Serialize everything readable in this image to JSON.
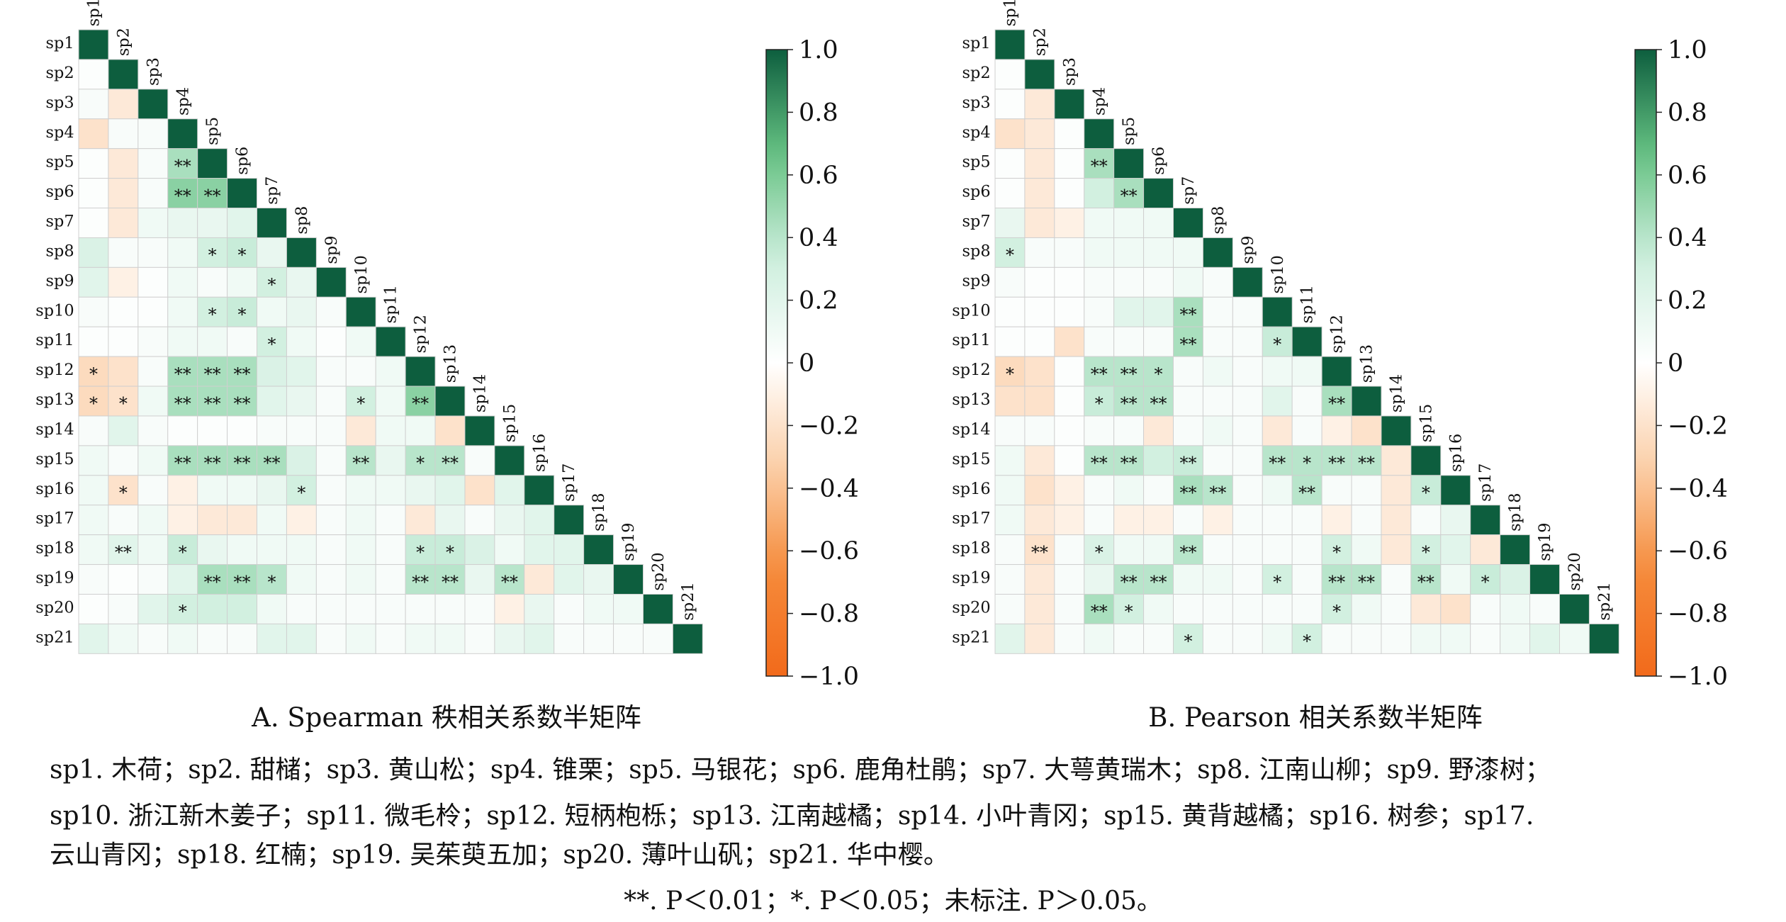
{
  "panels": [
    {
      "caption": "A. Spearman 秩相关系数半矩阵",
      "chart_data": {
        "type": "heatmap",
        "labels": [
          "sp1",
          "sp2",
          "sp3",
          "sp4",
          "sp5",
          "sp6",
          "sp7",
          "sp8",
          "sp9",
          "sp10",
          "sp11",
          "sp12",
          "sp13",
          "sp14",
          "sp15",
          "sp16",
          "sp17",
          "sp18",
          "sp19",
          "sp20",
          "sp21"
        ],
        "matrix": [
          [
            1.0
          ],
          [
            0.02,
            1.0
          ],
          [
            0.05,
            -0.15,
            1.0
          ],
          [
            -0.2,
            0.05,
            0.05,
            1.0
          ],
          [
            0.02,
            -0.15,
            0.05,
            0.45,
            1.0
          ],
          [
            0.02,
            -0.15,
            0.05,
            0.55,
            0.55,
            1.0
          ],
          [
            0.02,
            -0.15,
            0.1,
            0.15,
            0.15,
            0.2,
            1.0
          ],
          [
            0.25,
            0.05,
            0.05,
            0.1,
            0.3,
            0.35,
            0.15,
            1.0
          ],
          [
            0.2,
            -0.1,
            0.02,
            0.1,
            0.05,
            0.1,
            0.3,
            0.15,
            1.0
          ],
          [
            0.05,
            0.02,
            0.02,
            0.1,
            0.3,
            0.35,
            0.1,
            0.15,
            0.05,
            1.0
          ],
          [
            0.02,
            0.02,
            0.05,
            0.1,
            0.1,
            0.05,
            0.3,
            0.1,
            0.02,
            0.1,
            1.0
          ],
          [
            -0.25,
            -0.2,
            0.05,
            0.45,
            0.45,
            0.45,
            0.25,
            0.2,
            0.05,
            0.05,
            0.1,
            1.0
          ],
          [
            -0.25,
            -0.2,
            0.1,
            0.45,
            0.45,
            0.45,
            0.2,
            0.15,
            0.05,
            0.3,
            0.1,
            0.55,
            1.0
          ],
          [
            0.05,
            0.2,
            0.05,
            0.02,
            0.02,
            0.02,
            0.05,
            0.05,
            0.05,
            -0.15,
            0.1,
            0.1,
            -0.2,
            1.0
          ],
          [
            0.1,
            0.05,
            0.1,
            0.45,
            0.45,
            0.45,
            0.45,
            0.25,
            0.05,
            0.4,
            0.15,
            0.4,
            0.4,
            0.05,
            1.0
          ],
          [
            0.1,
            -0.2,
            0.05,
            -0.1,
            0.1,
            0.1,
            0.15,
            0.3,
            0.05,
            0.1,
            0.1,
            0.15,
            0.2,
            -0.2,
            0.2,
            1.0
          ],
          [
            0.1,
            0.05,
            0.1,
            -0.1,
            -0.15,
            -0.15,
            0.1,
            -0.1,
            0.05,
            0.1,
            0.05,
            -0.15,
            0.15,
            0.05,
            0.15,
            0.2,
            1.0
          ],
          [
            0.1,
            0.2,
            0.1,
            0.35,
            0.15,
            0.1,
            0.1,
            0.1,
            0.05,
            0.1,
            0.05,
            0.35,
            0.35,
            0.25,
            0.1,
            0.2,
            0.2,
            1.0
          ],
          [
            0.05,
            0.02,
            0.05,
            0.2,
            0.45,
            0.45,
            0.4,
            0.1,
            0.05,
            0.1,
            0.05,
            0.4,
            0.4,
            0.15,
            0.4,
            -0.15,
            0.2,
            0.15,
            1.0
          ],
          [
            0.02,
            0.05,
            0.2,
            0.3,
            0.3,
            0.3,
            0.1,
            0.05,
            0.05,
            0.05,
            0.05,
            0.05,
            0.05,
            0.05,
            -0.1,
            0.15,
            0.05,
            0.1,
            0.1,
            1.0
          ],
          [
            0.2,
            0.1,
            0.05,
            0.1,
            0.05,
            0.05,
            0.2,
            0.2,
            0.05,
            0.1,
            0.05,
            0.1,
            0.1,
            0.05,
            0.15,
            0.2,
            0.05,
            0.05,
            0.05,
            0.05,
            1.0
          ]
        ],
        "significance": [
          {
            "row": 5,
            "col": 4,
            "mark": "**"
          },
          {
            "row": 6,
            "col": 4,
            "mark": "**"
          },
          {
            "row": 6,
            "col": 5,
            "mark": "**"
          },
          {
            "row": 8,
            "col": 5,
            "mark": "*"
          },
          {
            "row": 8,
            "col": 6,
            "mark": "*"
          },
          {
            "row": 9,
            "col": 7,
            "mark": "*"
          },
          {
            "row": 10,
            "col": 5,
            "mark": "*"
          },
          {
            "row": 10,
            "col": 6,
            "mark": "*"
          },
          {
            "row": 11,
            "col": 7,
            "mark": "*"
          },
          {
            "row": 12,
            "col": 1,
            "mark": "*"
          },
          {
            "row": 12,
            "col": 4,
            "mark": "**"
          },
          {
            "row": 12,
            "col": 5,
            "mark": "**"
          },
          {
            "row": 12,
            "col": 6,
            "mark": "**"
          },
          {
            "row": 13,
            "col": 1,
            "mark": "*"
          },
          {
            "row": 13,
            "col": 2,
            "mark": "*"
          },
          {
            "row": 13,
            "col": 4,
            "mark": "**"
          },
          {
            "row": 13,
            "col": 5,
            "mark": "**"
          },
          {
            "row": 13,
            "col": 6,
            "mark": "**"
          },
          {
            "row": 13,
            "col": 10,
            "mark": "*"
          },
          {
            "row": 13,
            "col": 12,
            "mark": "**"
          },
          {
            "row": 15,
            "col": 4,
            "mark": "**"
          },
          {
            "row": 15,
            "col": 5,
            "mark": "**"
          },
          {
            "row": 15,
            "col": 6,
            "mark": "**"
          },
          {
            "row": 15,
            "col": 7,
            "mark": "**"
          },
          {
            "row": 15,
            "col": 10,
            "mark": "**"
          },
          {
            "row": 15,
            "col": 12,
            "mark": "*"
          },
          {
            "row": 15,
            "col": 13,
            "mark": "**"
          },
          {
            "row": 16,
            "col": 2,
            "mark": "*"
          },
          {
            "row": 16,
            "col": 8,
            "mark": "*"
          },
          {
            "row": 18,
            "col": 2,
            "mark": "**"
          },
          {
            "row": 18,
            "col": 4,
            "mark": "*"
          },
          {
            "row": 18,
            "col": 12,
            "mark": "*"
          },
          {
            "row": 18,
            "col": 13,
            "mark": "*"
          },
          {
            "row": 19,
            "col": 5,
            "mark": "**"
          },
          {
            "row": 19,
            "col": 6,
            "mark": "**"
          },
          {
            "row": 19,
            "col": 7,
            "mark": "*"
          },
          {
            "row": 19,
            "col": 12,
            "mark": "**"
          },
          {
            "row": 19,
            "col": 13,
            "mark": "**"
          },
          {
            "row": 19,
            "col": 15,
            "mark": "**"
          },
          {
            "row": 20,
            "col": 4,
            "mark": "*"
          }
        ]
      }
    },
    {
      "caption": "B. Pearson 相关系数半矩阵",
      "chart_data": {
        "type": "heatmap",
        "labels": [
          "sp1",
          "sp2",
          "sp3",
          "sp4",
          "sp5",
          "sp6",
          "sp7",
          "sp8",
          "sp9",
          "sp10",
          "sp11",
          "sp12",
          "sp13",
          "sp14",
          "sp15",
          "sp16",
          "sp17",
          "sp18",
          "sp19",
          "sp20",
          "sp21"
        ],
        "matrix": [
          [
            1.0
          ],
          [
            0.02,
            1.0
          ],
          [
            0.02,
            -0.15,
            1.0
          ],
          [
            -0.2,
            -0.15,
            0.02,
            1.0
          ],
          [
            0.02,
            -0.15,
            0.02,
            0.45,
            1.0
          ],
          [
            0.02,
            -0.15,
            0.02,
            0.3,
            0.45,
            1.0
          ],
          [
            0.15,
            -0.15,
            -0.1,
            0.1,
            0.1,
            0.1,
            1.0
          ],
          [
            0.3,
            0.05,
            0.05,
            0.1,
            0.1,
            0.1,
            0.1,
            1.0
          ],
          [
            0.05,
            0.02,
            0.02,
            0.05,
            0.05,
            0.05,
            0.1,
            0.05,
            1.0
          ],
          [
            0.02,
            0.02,
            0.02,
            0.05,
            0.2,
            0.2,
            0.45,
            0.05,
            0.05,
            1.0
          ],
          [
            0.02,
            0.02,
            -0.2,
            0.05,
            0.05,
            0.05,
            0.45,
            0.05,
            0.05,
            0.35,
            1.0
          ],
          [
            -0.25,
            -0.2,
            0.02,
            0.4,
            0.4,
            0.4,
            0.05,
            0.1,
            0.05,
            0.1,
            0.1,
            1.0
          ],
          [
            -0.2,
            -0.2,
            0.02,
            0.35,
            0.4,
            0.4,
            0.05,
            0.05,
            0.05,
            0.2,
            0.05,
            0.45,
            1.0
          ],
          [
            0.05,
            0.05,
            0.02,
            0.05,
            0.05,
            -0.15,
            0.05,
            0.1,
            0.05,
            -0.15,
            0.05,
            -0.1,
            -0.2,
            1.0
          ],
          [
            0.1,
            -0.15,
            0.02,
            0.4,
            0.4,
            0.3,
            0.35,
            0.05,
            0.05,
            0.4,
            0.4,
            0.4,
            0.4,
            -0.15,
            1.0
          ],
          [
            0.1,
            -0.2,
            -0.1,
            0.05,
            0.1,
            0.05,
            0.45,
            0.4,
            0.05,
            0.1,
            0.4,
            0.05,
            0.05,
            -0.15,
            0.35,
            1.0
          ],
          [
            0.1,
            -0.15,
            -0.1,
            0.05,
            -0.1,
            -0.1,
            0.05,
            -0.1,
            0.05,
            0.05,
            0.05,
            -0.1,
            0.05,
            -0.15,
            0.05,
            0.15,
            1.0
          ],
          [
            0.05,
            -0.2,
            0.05,
            0.25,
            0.1,
            0.1,
            0.4,
            0.05,
            0.05,
            0.05,
            0.05,
            0.3,
            0.1,
            -0.15,
            0.3,
            0.2,
            -0.15,
            1.0
          ],
          [
            0.05,
            -0.15,
            0.05,
            0.15,
            0.4,
            0.4,
            0.1,
            0.1,
            0.05,
            0.3,
            0.05,
            0.4,
            0.4,
            0.05,
            0.4,
            0.1,
            0.35,
            0.25,
            1.0
          ],
          [
            0.05,
            -0.15,
            0.05,
            0.45,
            0.3,
            0.1,
            0.05,
            0.05,
            0.05,
            0.05,
            0.05,
            0.3,
            0.1,
            0.05,
            -0.15,
            -0.2,
            0.05,
            0.1,
            0.05,
            1.0
          ],
          [
            0.2,
            -0.15,
            0.05,
            0.1,
            0.05,
            0.05,
            0.3,
            0.05,
            0.05,
            0.1,
            0.3,
            0.05,
            0.05,
            0.05,
            0.1,
            0.1,
            0.05,
            0.1,
            0.2,
            0.1,
            1.0
          ]
        ],
        "significance": [
          {
            "row": 5,
            "col": 4,
            "mark": "**"
          },
          {
            "row": 6,
            "col": 5,
            "mark": "**"
          },
          {
            "row": 8,
            "col": 1,
            "mark": "*"
          },
          {
            "row": 10,
            "col": 7,
            "mark": "**"
          },
          {
            "row": 11,
            "col": 7,
            "mark": "**"
          },
          {
            "row": 11,
            "col": 10,
            "mark": "*"
          },
          {
            "row": 12,
            "col": 1,
            "mark": "*"
          },
          {
            "row": 12,
            "col": 4,
            "mark": "**"
          },
          {
            "row": 12,
            "col": 5,
            "mark": "**"
          },
          {
            "row": 12,
            "col": 6,
            "mark": "*"
          },
          {
            "row": 13,
            "col": 4,
            "mark": "*"
          },
          {
            "row": 13,
            "col": 5,
            "mark": "**"
          },
          {
            "row": 13,
            "col": 6,
            "mark": "**"
          },
          {
            "row": 13,
            "col": 12,
            "mark": "**"
          },
          {
            "row": 15,
            "col": 4,
            "mark": "**"
          },
          {
            "row": 15,
            "col": 5,
            "mark": "**"
          },
          {
            "row": 15,
            "col": 7,
            "mark": "**"
          },
          {
            "row": 15,
            "col": 10,
            "mark": "**"
          },
          {
            "row": 15,
            "col": 11,
            "mark": "*"
          },
          {
            "row": 15,
            "col": 12,
            "mark": "**"
          },
          {
            "row": 15,
            "col": 13,
            "mark": "**"
          },
          {
            "row": 16,
            "col": 7,
            "mark": "**"
          },
          {
            "row": 16,
            "col": 8,
            "mark": "**"
          },
          {
            "row": 16,
            "col": 11,
            "mark": "**"
          },
          {
            "row": 16,
            "col": 15,
            "mark": "*"
          },
          {
            "row": 18,
            "col": 2,
            "mark": "**"
          },
          {
            "row": 18,
            "col": 4,
            "mark": "*"
          },
          {
            "row": 18,
            "col": 7,
            "mark": "**"
          },
          {
            "row": 18,
            "col": 12,
            "mark": "*"
          },
          {
            "row": 18,
            "col": 15,
            "mark": "*"
          },
          {
            "row": 19,
            "col": 5,
            "mark": "**"
          },
          {
            "row": 19,
            "col": 6,
            "mark": "**"
          },
          {
            "row": 19,
            "col": 10,
            "mark": "*"
          },
          {
            "row": 19,
            "col": 12,
            "mark": "**"
          },
          {
            "row": 19,
            "col": 13,
            "mark": "**"
          },
          {
            "row": 19,
            "col": 15,
            "mark": "**"
          },
          {
            "row": 19,
            "col": 17,
            "mark": "*"
          },
          {
            "row": 20,
            "col": 4,
            "mark": "**"
          },
          {
            "row": 20,
            "col": 5,
            "mark": "*"
          },
          {
            "row": 20,
            "col": 12,
            "mark": "*"
          },
          {
            "row": 21,
            "col": 7,
            "mark": "*"
          },
          {
            "row": 21,
            "col": 11,
            "mark": "*"
          }
        ]
      }
    }
  ],
  "colorbar": {
    "ticks": [
      "1.0",
      "0.8",
      "0.6",
      "0.4",
      "0.2",
      "0",
      "−0.2",
      "−0.4",
      "−0.6",
      "−0.8",
      "−1.0"
    ],
    "range": [
      -1.0,
      1.0
    ],
    "colors": {
      "pos_stops": [
        "#ffffff",
        "#cdeedd",
        "#66c283",
        "#0d5e3e"
      ],
      "neg_stops": [
        "#ffffff",
        "#fbcfa8",
        "#f58a3a",
        "#f26a1b"
      ]
    }
  },
  "legend_lines": [
    "sp1. 木荷；sp2. 甜槠；sp3. 黄山松；sp4. 锥栗；sp5. 马银花；sp6. 鹿角杜鹃；sp7. 大萼黄瑞木；sp8. 江南山柳；sp9. 野漆树；",
    "sp10. 浙江新木姜子；sp11. 微毛柃；sp12. 短柄枹栎；sp13. 江南越橘；sp14. 小叶青冈；sp15. 黄背越橘；sp16. 树参；sp17.",
    "云山青冈；sp18. 红楠；sp19. 吴茱萸五加；sp20. 薄叶山矾；sp21. 华中樱。"
  ],
  "significance_note": "**. P＜0.01；*. P＜0.05；未标注. P＞0.05。"
}
